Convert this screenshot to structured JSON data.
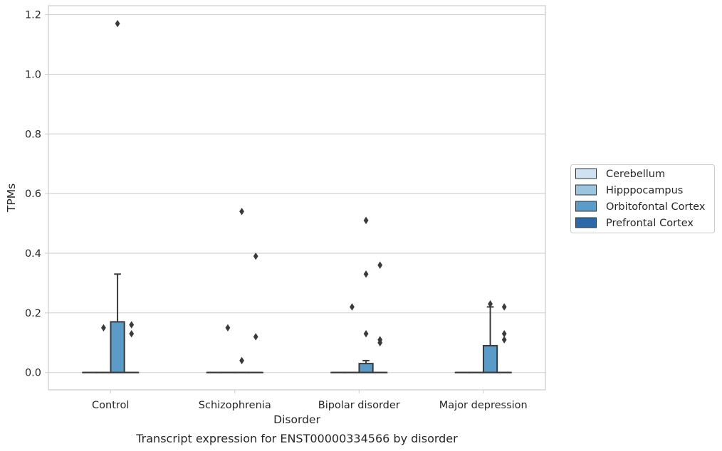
{
  "chart_data": {
    "type": "box",
    "xlabel": "Disorder",
    "ylabel": "TPMs",
    "caption": "Transcript expression for ENST00000334566 by disorder",
    "ylim": [
      -0.058,
      1.23
    ],
    "yticks": [
      "0.0",
      "0.2",
      "0.4",
      "0.6",
      "0.8",
      "1.0",
      "1.2"
    ],
    "grid": "horizontal",
    "legend_placement": "right",
    "categories": [
      "Control",
      "Schizophrenia",
      "Bipolar disorder",
      "Major depression"
    ],
    "series": [
      {
        "name": "Cerebellum",
        "color": "#d0e2f2",
        "boxes": [
          {
            "q1": 0,
            "median": 0,
            "q3": 0,
            "whislo": 0,
            "whishi": 0,
            "fliers": []
          },
          {
            "q1": 0,
            "median": 0,
            "q3": 0,
            "whislo": 0,
            "whishi": 0,
            "fliers": []
          },
          {
            "q1": 0,
            "median": 0,
            "q3": 0,
            "whislo": 0,
            "whishi": 0,
            "fliers": []
          },
          {
            "q1": 0,
            "median": 0,
            "q3": 0,
            "whislo": 0,
            "whishi": 0,
            "fliers": []
          }
        ]
      },
      {
        "name": "Hipppocampus",
        "color": "#9ac4e0",
        "boxes": [
          {
            "q1": 0,
            "median": 0,
            "q3": 0,
            "whislo": 0,
            "whishi": 0,
            "fliers": [
              0.15
            ]
          },
          {
            "q1": 0,
            "median": 0,
            "q3": 0,
            "whislo": 0,
            "whishi": 0,
            "fliers": [
              0.15
            ]
          },
          {
            "q1": 0,
            "median": 0,
            "q3": 0,
            "whislo": 0,
            "whishi": 0,
            "fliers": [
              0.22
            ]
          },
          {
            "q1": 0,
            "median": 0,
            "q3": 0,
            "whislo": 0,
            "whishi": 0,
            "fliers": []
          }
        ]
      },
      {
        "name": "Orbitofontal Cortex",
        "color": "#5a9bc8",
        "boxes": [
          {
            "q1": 0,
            "median": 0,
            "q3": 0.17,
            "whislo": 0,
            "whishi": 0.33,
            "fliers": [
              1.17
            ]
          },
          {
            "q1": 0,
            "median": 0,
            "q3": 0,
            "whislo": 0,
            "whishi": 0,
            "fliers": [
              0.54,
              0.04
            ]
          },
          {
            "q1": 0,
            "median": 0,
            "q3": 0.03,
            "whislo": 0,
            "whishi": 0.04,
            "fliers": [
              0.51,
              0.33,
              0.13
            ]
          },
          {
            "q1": 0,
            "median": 0,
            "q3": 0.09,
            "whislo": 0,
            "whishi": 0.22,
            "fliers": [
              0.23
            ]
          }
        ]
      },
      {
        "name": "Prefrontal Cortex",
        "color": "#2a6aa8",
        "boxes": [
          {
            "q1": 0,
            "median": 0,
            "q3": 0,
            "whislo": 0,
            "whishi": 0,
            "fliers": [
              0.16,
              0.13
            ]
          },
          {
            "q1": 0,
            "median": 0,
            "q3": 0,
            "whislo": 0,
            "whishi": 0,
            "fliers": [
              0.39,
              0.12
            ]
          },
          {
            "q1": 0,
            "median": 0,
            "q3": 0,
            "whislo": 0,
            "whishi": 0,
            "fliers": [
              0.36,
              0.11,
              0.1
            ]
          },
          {
            "q1": 0,
            "median": 0,
            "q3": 0,
            "whislo": 0,
            "whishi": 0,
            "fliers": [
              0.22,
              0.13,
              0.11
            ]
          }
        ]
      }
    ]
  }
}
